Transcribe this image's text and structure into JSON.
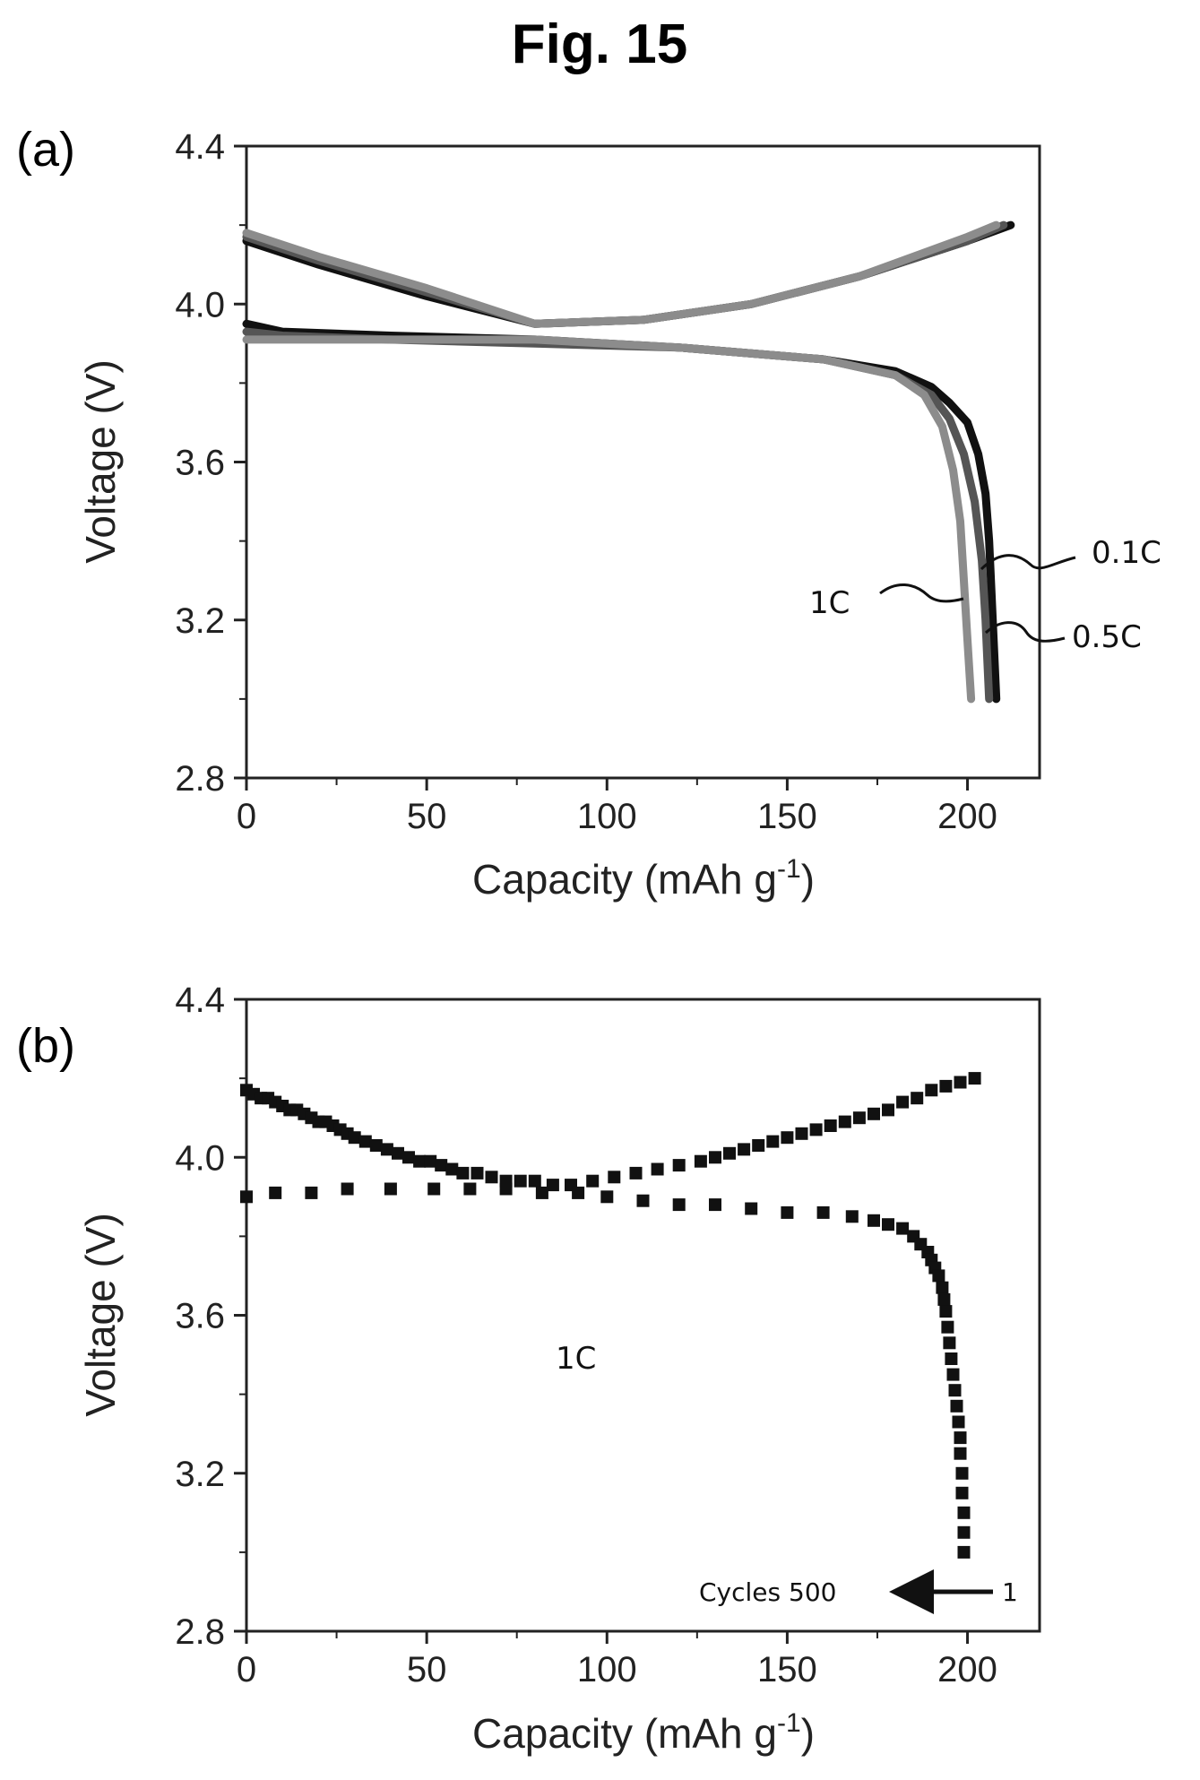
{
  "figure_title": "Fig. 15",
  "colors": {
    "dark": "#111111",
    "mid": "#555555",
    "light": "#8c8c8c",
    "frame": "#222222"
  },
  "chart_data": [
    {
      "panel_label": "(a)",
      "type": "line",
      "xlabel_main": "Capacity (mAh g",
      "xlabel_sup": "-1",
      "xlabel_end": ")",
      "ylabel": "Voltage (V)",
      "xlim": [
        0,
        220
      ],
      "ylim": [
        2.8,
        4.4
      ],
      "xticks": [
        "0",
        "50",
        "100",
        "150",
        "200"
      ],
      "yticks": [
        "2.8",
        "3.2",
        "3.6",
        "4.0",
        "4.4"
      ],
      "annotations": [
        "0.1C",
        "0.5C",
        "1C"
      ],
      "series": [
        {
          "name": "0.1C",
          "color": "dark",
          "kind": "discharge",
          "x": [
            0,
            10,
            40,
            80,
            120,
            160,
            180,
            190,
            195,
            200,
            203,
            205,
            206,
            207,
            208
          ],
          "y": [
            3.95,
            3.93,
            3.92,
            3.91,
            3.89,
            3.86,
            3.83,
            3.79,
            3.75,
            3.7,
            3.62,
            3.52,
            3.4,
            3.2,
            3.0
          ]
        },
        {
          "name": "0.1C",
          "color": "dark",
          "kind": "charge",
          "x": [
            0,
            20,
            50,
            80,
            110,
            140,
            170,
            200,
            212
          ],
          "y": [
            4.16,
            4.1,
            4.02,
            3.95,
            3.96,
            4.0,
            4.07,
            4.16,
            4.2
          ]
        },
        {
          "name": "0.5C",
          "color": "mid",
          "kind": "discharge",
          "x": [
            0,
            10,
            40,
            80,
            120,
            160,
            180,
            190,
            195,
            199,
            202,
            204,
            205,
            206
          ],
          "y": [
            3.93,
            3.92,
            3.91,
            3.9,
            3.89,
            3.86,
            3.82,
            3.77,
            3.71,
            3.62,
            3.5,
            3.35,
            3.2,
            3.0
          ]
        },
        {
          "name": "0.5C",
          "color": "mid",
          "kind": "charge",
          "x": [
            0,
            20,
            50,
            80,
            110,
            140,
            170,
            200,
            210
          ],
          "y": [
            4.17,
            4.11,
            4.03,
            3.95,
            3.96,
            4.0,
            4.07,
            4.16,
            4.2
          ]
        },
        {
          "name": "1C",
          "color": "light",
          "kind": "discharge",
          "x": [
            0,
            10,
            40,
            80,
            120,
            160,
            180,
            188,
            193,
            196,
            198,
            199,
            200,
            201
          ],
          "y": [
            3.91,
            3.91,
            3.91,
            3.91,
            3.89,
            3.86,
            3.82,
            3.77,
            3.69,
            3.58,
            3.45,
            3.3,
            3.15,
            3.0
          ]
        },
        {
          "name": "1C",
          "color": "light",
          "kind": "charge",
          "x": [
            0,
            20,
            50,
            80,
            110,
            140,
            170,
            200,
            208
          ],
          "y": [
            4.18,
            4.12,
            4.04,
            3.95,
            3.96,
            4.0,
            4.07,
            4.17,
            4.2
          ]
        }
      ]
    },
    {
      "panel_label": "(b)",
      "type": "scatter",
      "xlabel_main": "Capacity (mAh g",
      "xlabel_sup": "-1",
      "xlabel_end": ")",
      "ylabel": "Voltage (V)",
      "xlim": [
        0,
        220
      ],
      "ylim": [
        2.8,
        4.4
      ],
      "xticks": [
        "0",
        "50",
        "100",
        "150",
        "200"
      ],
      "yticks": [
        "2.8",
        "3.2",
        "3.6",
        "4.0",
        "4.4"
      ],
      "annotations": [
        "1C",
        "Cycles 500",
        "1"
      ],
      "series": [
        {
          "kind": "charge",
          "x": [
            0,
            2,
            4,
            6,
            8,
            10,
            12,
            14,
            16,
            18,
            20,
            22,
            24,
            26,
            28,
            30,
            33,
            36,
            39,
            42,
            45,
            48,
            51,
            54,
            57,
            60,
            64,
            68,
            72,
            76,
            80,
            85,
            90,
            96,
            102,
            108,
            114,
            120,
            126,
            130,
            134,
            138,
            142,
            146,
            150,
            154,
            158,
            162,
            166,
            170,
            174,
            178,
            182,
            186,
            190,
            194,
            198,
            202
          ],
          "y": [
            4.17,
            4.16,
            4.15,
            4.15,
            4.14,
            4.13,
            4.12,
            4.12,
            4.11,
            4.1,
            4.09,
            4.09,
            4.08,
            4.07,
            4.06,
            4.05,
            4.04,
            4.03,
            4.02,
            4.01,
            4.0,
            3.99,
            3.99,
            3.98,
            3.97,
            3.96,
            3.96,
            3.95,
            3.94,
            3.94,
            3.94,
            3.93,
            3.93,
            3.94,
            3.95,
            3.96,
            3.97,
            3.98,
            3.99,
            4.0,
            4.01,
            4.02,
            4.03,
            4.04,
            4.05,
            4.06,
            4.07,
            4.08,
            4.09,
            4.1,
            4.11,
            4.12,
            4.14,
            4.15,
            4.17,
            4.18,
            4.19,
            4.2
          ]
        },
        {
          "kind": "discharge",
          "x": [
            0,
            8,
            18,
            28,
            40,
            52,
            62,
            72,
            82,
            92,
            100,
            110,
            120,
            130,
            140,
            150,
            160,
            168,
            174,
            178,
            182,
            185,
            187,
            189,
            190,
            191,
            192,
            193,
            193.5,
            194,
            194.5,
            195,
            195.5,
            196,
            196.5,
            197,
            197.5,
            198,
            198,
            198.5,
            198.5,
            199,
            199,
            199
          ],
          "y": [
            3.9,
            3.91,
            3.91,
            3.92,
            3.92,
            3.92,
            3.92,
            3.92,
            3.91,
            3.91,
            3.9,
            3.89,
            3.88,
            3.88,
            3.87,
            3.86,
            3.86,
            3.85,
            3.84,
            3.83,
            3.82,
            3.8,
            3.78,
            3.76,
            3.74,
            3.72,
            3.7,
            3.67,
            3.64,
            3.61,
            3.57,
            3.53,
            3.49,
            3.45,
            3.41,
            3.37,
            3.33,
            3.29,
            3.25,
            3.2,
            3.15,
            3.1,
            3.05,
            3.0
          ]
        }
      ]
    }
  ]
}
